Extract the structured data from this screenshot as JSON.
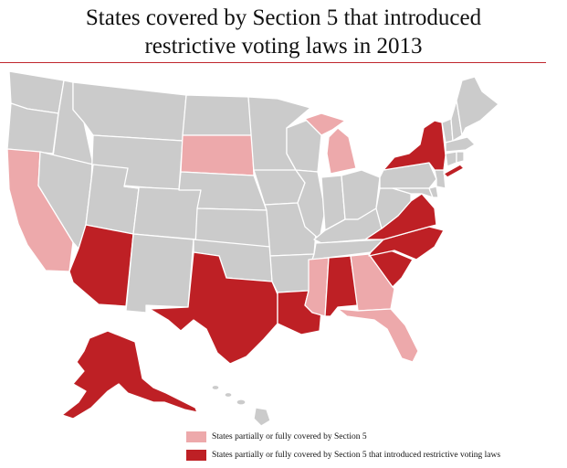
{
  "title": {
    "line1": "States covered by Section 5 that introduced",
    "line2": "restrictive voting laws in 2013"
  },
  "colors": {
    "none": "#cbcbcb",
    "partial": "#eda9ab",
    "restrictive": "#be2025",
    "rule": "#c0272d"
  },
  "legend": [
    {
      "key": "partial",
      "label": "States partially or fully covered by Section 5"
    },
    {
      "key": "restrictive",
      "label": "States partially or fully covered by Section 5 that introduced restrictive voting laws"
    }
  ],
  "states": {
    "partial": [
      "California",
      "South Dakota",
      "Michigan",
      "Mississippi",
      "Georgia",
      "Florida"
    ],
    "restrictive": [
      "Arizona",
      "Texas",
      "Louisiana",
      "Alabama",
      "South Carolina",
      "North Carolina",
      "Virginia",
      "New York",
      "Alaska"
    ]
  }
}
